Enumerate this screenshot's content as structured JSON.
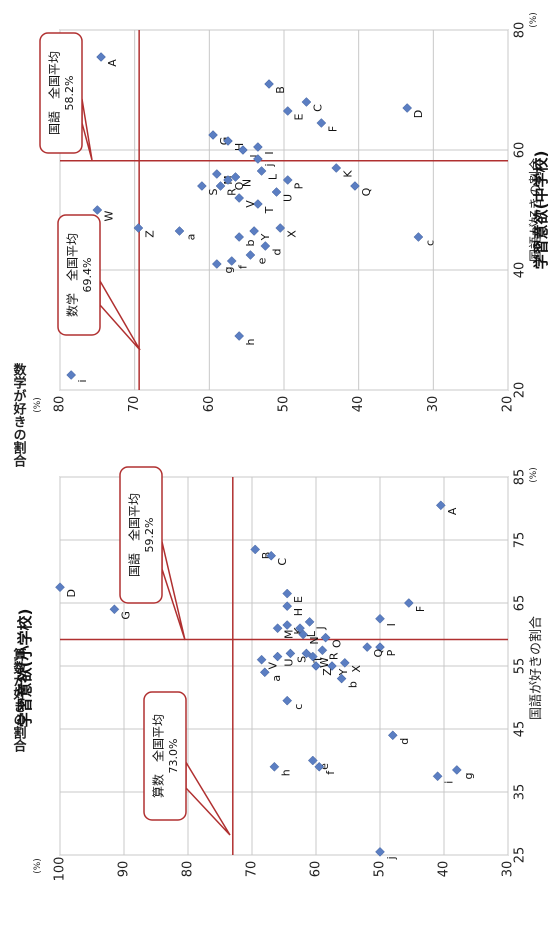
{
  "chart_data": [
    {
      "type": "scatter",
      "title": "学習意欲(小学校)",
      "xlabel": "国語が好きの割合",
      "ylabel": "算数が好きの割合",
      "x_unit": "(%)",
      "y_unit": "(%)",
      "xlim": [
        25,
        85
      ],
      "ylim": [
        30,
        100
      ],
      "xticks": [
        "25",
        "35",
        "45",
        "55",
        "65",
        "75",
        "85"
      ],
      "yticks": [
        "100",
        "90",
        "80",
        "70",
        "60",
        "50",
        "40",
        "30"
      ],
      "grid": true,
      "marker_color": "#5b7ec2",
      "ref_line_color": "#b03030",
      "ref_x": 59.2,
      "ref_y": 73.0,
      "callout_x": {
        "label": "国語　全国平均",
        "value": "59.2%"
      },
      "callout_y": {
        "label": "算数　全国平均",
        "value": "73.0%"
      },
      "points": [
        {
          "label": "A",
          "x": 80.5,
          "y": 40.5
        },
        {
          "label": "B",
          "x": 73.5,
          "y": 69.5
        },
        {
          "label": "C",
          "x": 72.5,
          "y": 67.0
        },
        {
          "label": "D",
          "x": 67.5,
          "y": 100.0
        },
        {
          "label": "E",
          "x": 66.5,
          "y": 64.5
        },
        {
          "label": "F",
          "x": 65.0,
          "y": 45.5
        },
        {
          "label": "G",
          "x": 64.0,
          "y": 91.5
        },
        {
          "label": "H",
          "x": 64.5,
          "y": 64.5
        },
        {
          "label": "I",
          "x": 62.5,
          "y": 50.0
        },
        {
          "label": "J",
          "x": 62.0,
          "y": 61.0
        },
        {
          "label": "K",
          "x": 61.5,
          "y": 64.5
        },
        {
          "label": "L",
          "x": 61.0,
          "y": 62.5
        },
        {
          "label": "M",
          "x": 61.0,
          "y": 66.0
        },
        {
          "label": "N",
          "x": 60.0,
          "y": 62.0
        },
        {
          "label": "O",
          "x": 59.5,
          "y": 58.5
        },
        {
          "label": "P",
          "x": 58.0,
          "y": 50.0
        },
        {
          "label": "Q",
          "x": 58.0,
          "y": 52.0
        },
        {
          "label": "R",
          "x": 57.5,
          "y": 59.0
        },
        {
          "label": "S",
          "x": 57.0,
          "y": 64.0
        },
        {
          "label": "T",
          "x": 57.0,
          "y": 61.5
        },
        {
          "label": "U",
          "x": 56.5,
          "y": 66.0
        },
        {
          "label": "V",
          "x": 56.0,
          "y": 68.5
        },
        {
          "label": "W",
          "x": 56.5,
          "y": 60.5
        },
        {
          "label": "X",
          "x": 55.5,
          "y": 55.5
        },
        {
          "label": "Y",
          "x": 55.0,
          "y": 57.5
        },
        {
          "label": "Z",
          "x": 55.0,
          "y": 60.0
        },
        {
          "label": "a",
          "x": 54.0,
          "y": 68.0
        },
        {
          "label": "b",
          "x": 53.0,
          "y": 56.0
        },
        {
          "label": "c",
          "x": 49.5,
          "y": 64.5
        },
        {
          "label": "d",
          "x": 44.0,
          "y": 48.0
        },
        {
          "label": "e",
          "x": 40.0,
          "y": 60.5
        },
        {
          "label": "f",
          "x": 39.0,
          "y": 59.5
        },
        {
          "label": "g",
          "x": 38.5,
          "y": 38.0
        },
        {
          "label": "h",
          "x": 39.0,
          "y": 66.5
        },
        {
          "label": "i",
          "x": 37.5,
          "y": 41.0
        },
        {
          "label": "j",
          "x": 25.5,
          "y": 50.0
        }
      ]
    },
    {
      "type": "scatter",
      "title": "学習意欲(中学校)",
      "xlabel": "国語が好きの割合",
      "ylabel": "数学が好きの割合",
      "x_unit": "(%)",
      "y_unit": "(%)",
      "xlim": [
        20,
        80
      ],
      "ylim": [
        20,
        80
      ],
      "xticks": [
        "20",
        "40",
        "60",
        "80"
      ],
      "yticks": [
        "80",
        "70",
        "60",
        "50",
        "40",
        "30",
        "20"
      ],
      "grid": true,
      "marker_color": "#5b7ec2",
      "ref_line_color": "#b03030",
      "ref_x": 58.2,
      "ref_y": 69.4,
      "callout_x": {
        "label": "国語　全国平均",
        "value": "58.2%"
      },
      "callout_y": {
        "label": "数学　全国平均",
        "value": "69.4%"
      },
      "points": [
        {
          "label": "A",
          "x": 75.5,
          "y": 74.5
        },
        {
          "label": "B",
          "x": 71.0,
          "y": 52.0
        },
        {
          "label": "C",
          "x": 68.0,
          "y": 47.0
        },
        {
          "label": "D",
          "x": 67.0,
          "y": 33.5
        },
        {
          "label": "E",
          "x": 66.5,
          "y": 49.5
        },
        {
          "label": "F",
          "x": 64.5,
          "y": 45.0
        },
        {
          "label": "G",
          "x": 62.5,
          "y": 59.5
        },
        {
          "label": "H",
          "x": 61.5,
          "y": 57.5
        },
        {
          "label": "I",
          "x": 60.5,
          "y": 53.5
        },
        {
          "label": "J",
          "x": 60.0,
          "y": 55.5
        },
        {
          "label": "K",
          "x": 57.0,
          "y": 43.0
        },
        {
          "label": "L",
          "x": 56.5,
          "y": 53.0
        },
        {
          "label": "M",
          "x": 56.0,
          "y": 59.0
        },
        {
          "label": "N",
          "x": 55.5,
          "y": 56.5
        },
        {
          "label": "O",
          "x": 55.0,
          "y": 57.5
        },
        {
          "label": "P",
          "x": 55.0,
          "y": 49.5
        },
        {
          "label": "Q",
          "x": 54.0,
          "y": 40.5
        },
        {
          "label": "R",
          "x": 54.0,
          "y": 58.5
        },
        {
          "label": "S",
          "x": 54.0,
          "y": 61.0
        },
        {
          "label": "T",
          "x": 51.0,
          "y": 53.5
        },
        {
          "label": "U",
          "x": 53.0,
          "y": 51.0
        },
        {
          "label": "V",
          "x": 52.0,
          "y": 56.0
        },
        {
          "label": "W",
          "x": 50.0,
          "y": 75.0
        },
        {
          "label": "X",
          "x": 47.0,
          "y": 50.5
        },
        {
          "label": "Y",
          "x": 46.5,
          "y": 54.0
        },
        {
          "label": "Z",
          "x": 47.0,
          "y": 69.5
        },
        {
          "label": "a",
          "x": 46.5,
          "y": 64.0
        },
        {
          "label": "b",
          "x": 45.5,
          "y": 56.0
        },
        {
          "label": "c",
          "x": 45.5,
          "y": 32.0
        },
        {
          "label": "d",
          "x": 44.0,
          "y": 52.5
        },
        {
          "label": "e",
          "x": 42.5,
          "y": 54.5
        },
        {
          "label": "f",
          "x": 41.5,
          "y": 57.0
        },
        {
          "label": "g",
          "x": 41.0,
          "y": 59.0
        },
        {
          "label": "h",
          "x": 29.0,
          "y": 56.0
        },
        {
          "label": "i",
          "x": 22.5,
          "y": 78.5
        },
        {
          "label": "j",
          "x": 58.5,
          "y": 53.5
        }
      ]
    }
  ]
}
